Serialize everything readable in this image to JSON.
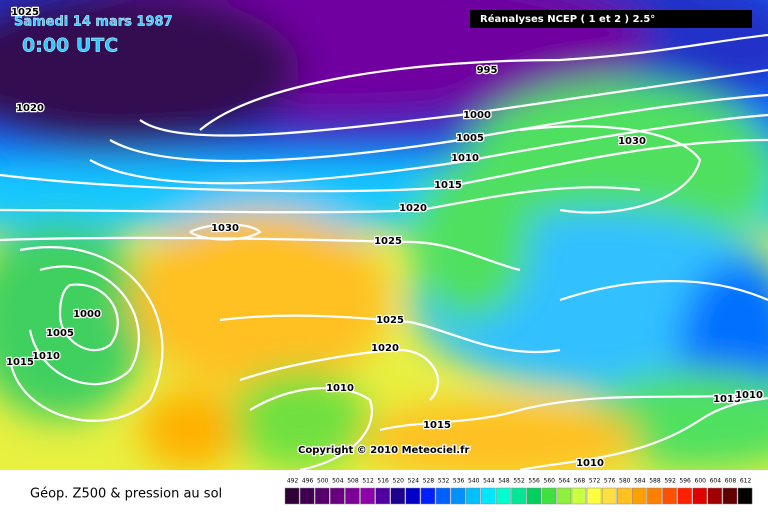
{
  "header": {
    "date": "Samedi 14 mars 1987",
    "time": "0:00 UTC",
    "source": "Réanalyses NCEP ( 1 et 2 ) 2.5°"
  },
  "isobar_labels": [
    1025,
    1020,
    995,
    1000,
    1005,
    1010,
    1015,
    1020,
    1025,
    1030,
    1030,
    1000,
    1005,
    1010,
    1015,
    1025,
    1020,
    1010,
    1015,
    1010,
    1015,
    1010
  ],
  "copyright": "Copyright © 2010 Meteociel.fr",
  "footer": {
    "caption": "Géop. Z500 & pression au sol",
    "scale": {
      "values": [
        492,
        496,
        500,
        504,
        508,
        512,
        516,
        520,
        524,
        528,
        532,
        536,
        540,
        544,
        548,
        552,
        556,
        560,
        564,
        568,
        572,
        576,
        580,
        584,
        588,
        592,
        596,
        600,
        604,
        608,
        612
      ],
      "colors": [
        "#2e0036",
        "#3f0052",
        "#55006c",
        "#6a0080",
        "#7d0096",
        "#8e00aa",
        "#5000a0",
        "#1e0090",
        "#0000c8",
        "#0020ff",
        "#0060ff",
        "#0090ff",
        "#00c0ff",
        "#00e6ff",
        "#00ffd0",
        "#00e696",
        "#00d060",
        "#40e040",
        "#90f040",
        "#c8ff40",
        "#ffff40",
        "#ffe040",
        "#ffc020",
        "#ffa000",
        "#ff8000",
        "#ff5000",
        "#ff2000",
        "#e00000",
        "#a00000",
        "#600000",
        "#000000"
      ]
    }
  }
}
